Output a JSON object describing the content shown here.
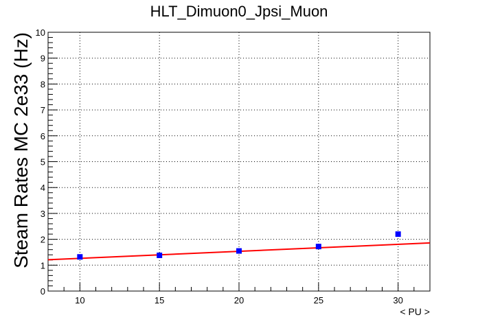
{
  "chart_data": {
    "type": "scatter",
    "title": "HLT_Dimuon0_Jpsi_Muon",
    "xlabel": "< PU >",
    "ylabel": "Steam Rates MC 2e33 (Hz)",
    "xlim": [
      8,
      32
    ],
    "ylim": [
      0,
      10
    ],
    "x_ticks": [
      10,
      15,
      20,
      25,
      30
    ],
    "y_ticks": [
      0,
      1,
      2,
      3,
      4,
      5,
      6,
      7,
      8,
      9,
      10
    ],
    "grid": true,
    "series": [
      {
        "kind": "points",
        "color": "#0000ff",
        "x": [
          10,
          15,
          20,
          25,
          30
        ],
        "y": [
          1.32,
          1.38,
          1.55,
          1.72,
          2.2
        ],
        "yerr": [
          0.05,
          0.05,
          0.05,
          0.06,
          0.1
        ]
      },
      {
        "kind": "fit-line",
        "color": "#ff0000",
        "x": [
          8,
          32
        ],
        "y": [
          1.21,
          1.86
        ]
      }
    ]
  }
}
